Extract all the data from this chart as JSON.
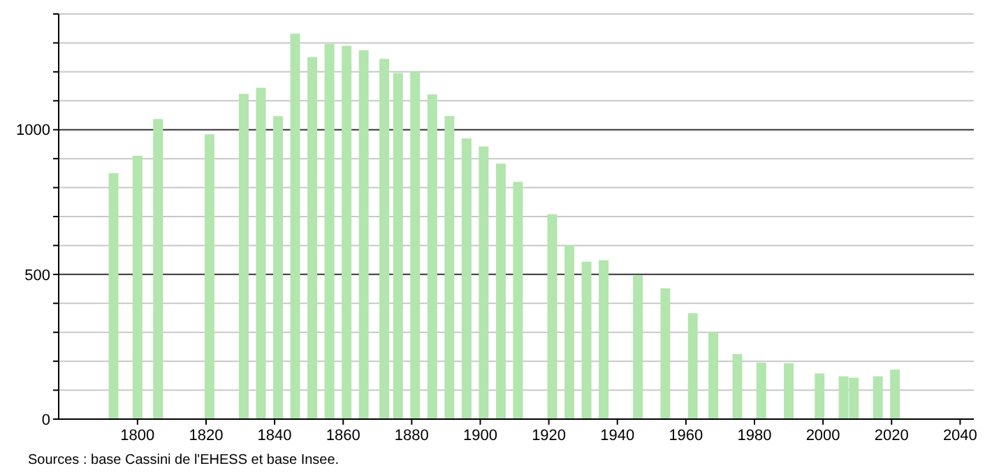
{
  "chart_data": {
    "type": "bar",
    "x": [
      1793,
      1800,
      1806,
      1821,
      1831,
      1836,
      1841,
      1846,
      1851,
      1856,
      1861,
      1866,
      1872,
      1876,
      1881,
      1886,
      1891,
      1896,
      1901,
      1906,
      1911,
      1921,
      1926,
      1931,
      1936,
      1946,
      1954,
      1962,
      1968,
      1975,
      1982,
      1990,
      1999,
      2006,
      2009,
      2016,
      2021
    ],
    "values": [
      850,
      910,
      1037,
      984,
      1124,
      1145,
      1047,
      1332,
      1251,
      1296,
      1290,
      1275,
      1245,
      1196,
      1201,
      1122,
      1047,
      970,
      942,
      883,
      820,
      708,
      601,
      544,
      549,
      496,
      452,
      366,
      298,
      225,
      195,
      193,
      158,
      148,
      143,
      148,
      171
    ],
    "color": "#b3e5ae",
    "xlim": [
      1777,
      2044
    ],
    "xticks": [
      1800,
      1820,
      1840,
      1860,
      1880,
      1900,
      1920,
      1940,
      1960,
      1980,
      2000,
      2020,
      2040
    ],
    "ylim": [
      0,
      1400
    ],
    "yticks": [
      0,
      {
        "value": 100,
        "label": null
      },
      {
        "value": 200,
        "label": null
      },
      {
        "value": 300,
        "label": null
      },
      {
        "value": 400,
        "label": null
      },
      500,
      {
        "value": 600,
        "label": null
      },
      {
        "value": 700,
        "label": null
      },
      {
        "value": 800,
        "label": null
      },
      {
        "value": 900,
        "label": null
      },
      1000,
      {
        "value": 1100,
        "label": null
      },
      {
        "value": 1200,
        "label": null
      },
      {
        "value": 1300,
        "label": null
      },
      {
        "value": 1400,
        "label": null
      }
    ],
    "grid": "y",
    "annotations": [
      "Sources : base Cassini de l'EHESS et base Insee."
    ]
  }
}
